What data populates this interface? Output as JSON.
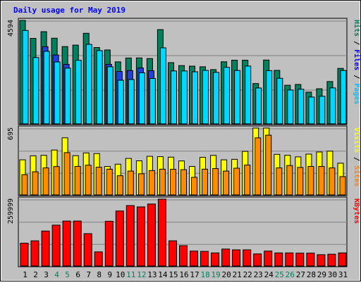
{
  "chart_data": {
    "type": "bar",
    "title": "Daily usage for May 2019",
    "x": [
      "1",
      "2",
      "3",
      "4",
      "5",
      "6",
      "7",
      "8",
      "9",
      "10",
      "11",
      "12",
      "13",
      "14",
      "15",
      "16",
      "17",
      "18",
      "19",
      "20",
      "21",
      "22",
      "23",
      "24",
      "25",
      "26",
      "27",
      "28",
      "29",
      "30",
      "31"
    ],
    "weekend_days": [
      "4",
      "5",
      "11",
      "12",
      "18",
      "19",
      "25",
      "26"
    ],
    "panels": [
      {
        "name": "top",
        "ymax_label": "4594",
        "ymax": 4594,
        "axis_labels": [
          {
            "text": "Hits",
            "color": "#00805c"
          },
          {
            "text": "Files",
            "color": "#0000ff"
          },
          {
            "text": "Pages",
            "color": "#00c0ff"
          }
        ],
        "series": [
          {
            "name": "Hits",
            "color": "#00805c",
            "values": [
              4594,
              3797,
              4093,
              3803,
              3432,
              3496,
              4023,
              3390,
              3281,
              2752,
              2926,
              2928,
              2899,
              4185,
              2718,
              2589,
              2563,
              2534,
              2408,
              2757,
              2829,
              2829,
              1792,
              2833,
              2376,
              1717,
              1749,
              1411,
              1559,
              1879,
              2463
            ]
          },
          {
            "name": "Files",
            "color": "#2040e0",
            "values": [
              0,
              0,
              3426,
              3060,
              2643,
              0,
              0,
              0,
              2644,
              2325,
              2367,
              2481,
              2361,
              0,
              0,
              0,
              0,
              0,
              0,
              0,
              0,
              0,
              0,
              0,
              0,
              0,
              0,
              0,
              0,
              0,
              0
            ]
          },
          {
            "name": "Pages",
            "color": "#00d8ff",
            "values": [
              4147,
              2943,
              3223,
              2749,
              2476,
              2826,
              3532,
              3253,
              2534,
              1937,
              1969,
              2270,
              2016,
              3375,
              2350,
              2349,
              2314,
              2375,
              2288,
              2510,
              2373,
              2566,
              1594,
              2363,
              2024,
              1503,
              1538,
              1192,
              1226,
              1596,
              2370
            ]
          }
        ]
      },
      {
        "name": "middle",
        "ymax_label": "695",
        "ymax": 695,
        "axis_labels": [
          {
            "text": "Visits",
            "color": "#ffff00"
          },
          {
            "text": "Sites",
            "color": "#ff8000"
          }
        ],
        "series": [
          {
            "name": "Visits",
            "color": "#ffff00",
            "values": [
              365,
              407,
              412,
              467,
              594,
              408,
              437,
              430,
              296,
              320,
              380,
              355,
              402,
              398,
              393,
              353,
              296,
              391,
              411,
              365,
              370,
              453,
              695,
              695,
              422,
              412,
              396,
              424,
              446,
              455,
              330
            ]
          },
          {
            "name": "Sites",
            "color": "#ff8c00",
            "values": [
              211,
              241,
              281,
              295,
              440,
              296,
              309,
              288,
              268,
              200,
              248,
              220,
              253,
              268,
              267,
              263,
              183,
              268,
              274,
              248,
              278,
              310,
              593,
              621,
              281,
              306,
              286,
              296,
              296,
              281,
              190
            ]
          }
        ]
      },
      {
        "name": "bottom",
        "ymax_label": "259999",
        "ymax": 259999,
        "axis_labels": [
          {
            "text": "KBytes",
            "color": "#ff0000"
          }
        ],
        "series": [
          {
            "name": "KBytes",
            "color": "#ff0000",
            "values": [
              89000,
              98000,
              136000,
              159000,
              175000,
              175000,
              126000,
              55000,
              174000,
              214000,
              235000,
              230000,
              241000,
              259999,
              98000,
              79000,
              58000,
              57000,
              51000,
              66000,
              63000,
              63000,
              47000,
              58000,
              51000,
              51000,
              50000,
              50000,
              44000,
              46000,
              51000
            ]
          }
        ]
      }
    ]
  }
}
